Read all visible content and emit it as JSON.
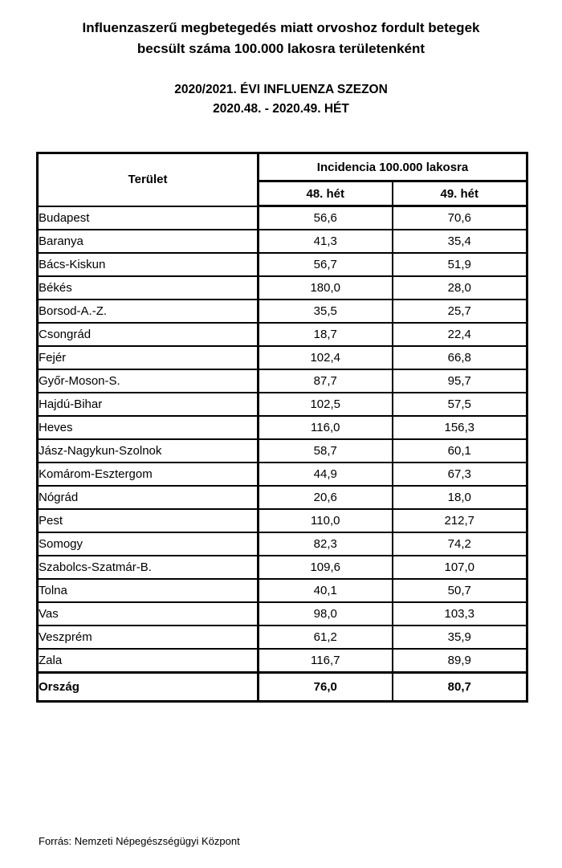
{
  "title": {
    "line1": "Influenzaszerű megbetegedés miatt orvoshoz fordult betegek",
    "line2": "becsült száma 100.000 lakosra területenként"
  },
  "season": {
    "line1": "2020/2021. ÉVI INFLUENZA SZEZON",
    "line2": "2020.48. - 2020.49. HÉT"
  },
  "table": {
    "col_area": "Terület",
    "col_group": "Incidencia 100.000 lakosra",
    "col_week1": "48. hét",
    "col_week2": "49. hét",
    "rows": [
      {
        "area": "Budapest",
        "w48": "56,6",
        "w49": "70,6"
      },
      {
        "area": "Baranya",
        "w48": "41,3",
        "w49": "35,4"
      },
      {
        "area": "Bács-Kiskun",
        "w48": "56,7",
        "w49": "51,9"
      },
      {
        "area": "Békés",
        "w48": "180,0",
        "w49": "28,0"
      },
      {
        "area": "Borsod-A.-Z.",
        "w48": "35,5",
        "w49": "25,7"
      },
      {
        "area": "Csongrád",
        "w48": "18,7",
        "w49": "22,4"
      },
      {
        "area": "Fejér",
        "w48": "102,4",
        "w49": "66,8"
      },
      {
        "area": "Győr-Moson-S.",
        "w48": "87,7",
        "w49": "95,7"
      },
      {
        "area": "Hajdú-Bihar",
        "w48": "102,5",
        "w49": "57,5"
      },
      {
        "area": "Heves",
        "w48": "116,0",
        "w49": "156,3"
      },
      {
        "area": "Jász-Nagykun-Szolnok",
        "w48": "58,7",
        "w49": "60,1"
      },
      {
        "area": "Komárom-Esztergom",
        "w48": "44,9",
        "w49": "67,3"
      },
      {
        "area": "Nógrád",
        "w48": "20,6",
        "w49": "18,0"
      },
      {
        "area": "Pest",
        "w48": "110,0",
        "w49": "212,7"
      },
      {
        "area": "Somogy",
        "w48": "82,3",
        "w49": "74,2"
      },
      {
        "area": "Szabolcs-Szatmár-B.",
        "w48": "109,6",
        "w49": "107,0"
      },
      {
        "area": "Tolna",
        "w48": "40,1",
        "w49": "50,7"
      },
      {
        "area": "Vas",
        "w48": "98,0",
        "w49": "103,3"
      },
      {
        "area": "Veszprém",
        "w48": "61,2",
        "w49": "35,9"
      },
      {
        "area": "Zala",
        "w48": "116,7",
        "w49": "89,9"
      }
    ],
    "total": {
      "area": "Ország",
      "w48": "76,0",
      "w49": "80,7"
    }
  },
  "footer": {
    "source": "Forrás: Nemzeti Népegészségügyi Központ"
  },
  "colors": {
    "text": "#000000",
    "background": "#ffffff",
    "border": "#000000"
  }
}
